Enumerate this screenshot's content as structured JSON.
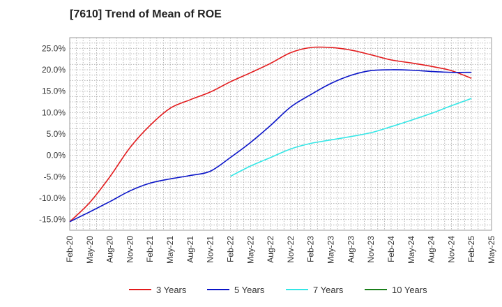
{
  "chart_data": {
    "type": "line",
    "title": "[7610]  Trend of Mean of ROE",
    "xlabel": "",
    "ylabel": "",
    "ylim": [
      -17.5,
      27.5
    ],
    "yticks": [
      -15,
      -10,
      -5,
      0,
      5,
      10,
      15,
      20,
      25
    ],
    "ytick_labels": [
      "-15.0%",
      "-10.0%",
      "-5.0%",
      "0.0%",
      "5.0%",
      "10.0%",
      "15.0%",
      "20.0%",
      "25.0%"
    ],
    "xticks": [
      "Feb-20",
      "May-20",
      "Aug-20",
      "Nov-20",
      "Feb-21",
      "May-21",
      "Aug-21",
      "Nov-21",
      "Feb-22",
      "May-22",
      "Aug-22",
      "Nov-22",
      "Feb-23",
      "May-23",
      "Aug-23",
      "Nov-23",
      "Feb-24",
      "May-24",
      "Aug-24",
      "Nov-24",
      "Feb-25",
      "May-25"
    ],
    "grid": true,
    "legend_position": "bottom",
    "series": [
      {
        "name": "3 Years",
        "color": "#e31a1c",
        "x": [
          "Feb-20",
          "May-20",
          "Aug-20",
          "Nov-20",
          "Feb-21",
          "May-21",
          "Aug-21",
          "Nov-21",
          "Feb-22",
          "May-22",
          "Aug-22",
          "Nov-22",
          "Feb-23",
          "May-23",
          "Aug-23",
          "Nov-23",
          "Feb-24",
          "May-24",
          "Aug-24",
          "Nov-24",
          "Feb-25"
        ],
        "values": [
          -15.5,
          -11.0,
          -5.0,
          1.8,
          7.0,
          11.0,
          13.0,
          14.8,
          17.2,
          19.3,
          21.5,
          24.0,
          25.2,
          25.2,
          24.6,
          23.5,
          22.3,
          21.6,
          20.8,
          19.8,
          18.0
        ]
      },
      {
        "name": "5 Years",
        "color": "#0a14c8",
        "x": [
          "Feb-20",
          "May-20",
          "Aug-20",
          "Nov-20",
          "Feb-21",
          "May-21",
          "Aug-21",
          "Nov-21",
          "Feb-22",
          "May-22",
          "Aug-22",
          "Nov-22",
          "Feb-23",
          "May-23",
          "Aug-23",
          "Nov-23",
          "Feb-24",
          "May-24",
          "Aug-24",
          "Nov-24",
          "Feb-25"
        ],
        "values": [
          -15.5,
          -13.2,
          -10.8,
          -8.3,
          -6.5,
          -5.5,
          -4.7,
          -3.7,
          -0.5,
          3.0,
          7.0,
          11.3,
          14.2,
          16.8,
          18.7,
          19.8,
          20.0,
          19.9,
          19.6,
          19.4,
          19.4
        ]
      },
      {
        "name": "7 Years",
        "color": "#33e6e6",
        "x": [
          "Feb-22",
          "May-22",
          "Aug-22",
          "Nov-22",
          "Feb-23",
          "May-23",
          "Aug-23",
          "Nov-23",
          "Feb-24",
          "May-24",
          "Aug-24",
          "Nov-24",
          "Feb-25"
        ],
        "values": [
          -4.9,
          -2.5,
          -0.5,
          1.5,
          2.8,
          3.6,
          4.4,
          5.3,
          6.7,
          8.2,
          9.8,
          11.6,
          13.3
        ]
      },
      {
        "name": "10 Years",
        "color": "#1a7f1a",
        "x": [],
        "values": []
      }
    ]
  }
}
